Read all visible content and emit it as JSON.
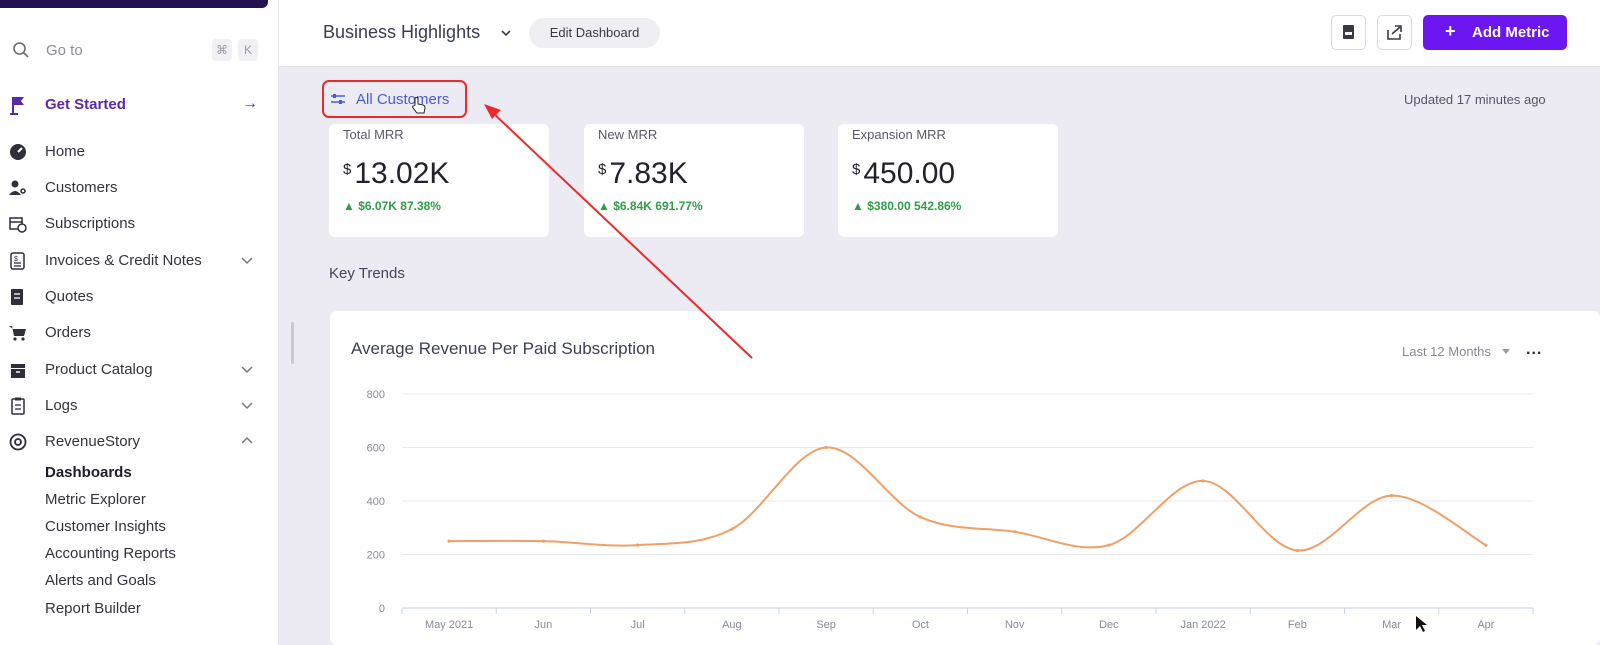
{
  "sidebar": {
    "search_placeholder": "Go to",
    "shortcut_keys": [
      "⌘",
      "K"
    ],
    "get_started": "Get Started",
    "items": [
      {
        "label": "Home"
      },
      {
        "label": "Customers"
      },
      {
        "label": "Subscriptions"
      },
      {
        "label": "Invoices & Credit Notes",
        "expandable": true
      },
      {
        "label": "Quotes"
      },
      {
        "label": "Orders"
      },
      {
        "label": "Product Catalog",
        "expandable": true
      },
      {
        "label": "Logs",
        "expandable": true
      },
      {
        "label": "RevenueStory",
        "expanded": true
      }
    ],
    "revenue_story_subitems": [
      "Dashboards",
      "Metric Explorer",
      "Customer Insights",
      "Accounting Reports",
      "Alerts and Goals",
      "Report Builder"
    ],
    "active_subitem": "Dashboards"
  },
  "header": {
    "dashboard_title": "Business Highlights",
    "edit_button": "Edit Dashboard",
    "add_metric_button": "Add Metric"
  },
  "filter": {
    "label": "All Customers",
    "updated_text": "Updated 17 minutes ago"
  },
  "metrics": [
    {
      "title": "Total MRR",
      "currency": "$",
      "value": "13.02K",
      "delta": "$6.07K",
      "delta_pct": "87.38%"
    },
    {
      "title": "New MRR",
      "currency": "$",
      "value": "7.83K",
      "delta": "$6.84K",
      "delta_pct": "691.77%"
    },
    {
      "title": "Expansion MRR",
      "currency": "$",
      "value": "450.00",
      "delta": "$380.00",
      "delta_pct": "542.86%"
    }
  ],
  "section_title": "Key Trends",
  "chart_panel": {
    "title": "Average Revenue Per Paid Subscription",
    "range": "Last 12 Months",
    "more": "..."
  },
  "colors": {
    "brand_purple": "#6c16f2",
    "line": "#f0a067",
    "positive": "#2f9e44",
    "annotation_red": "#ea2b2b"
  },
  "chart_data": {
    "type": "line",
    "title": "Average Revenue Per Paid Subscription",
    "categories": [
      "May 2021",
      "Jun",
      "Jul",
      "Aug",
      "Sep",
      "Oct",
      "Nov",
      "Dec",
      "Jan 2022",
      "Feb",
      "Mar",
      "Apr"
    ],
    "values": [
      250,
      250,
      235,
      295,
      600,
      340,
      285,
      235,
      475,
      215,
      420,
      235
    ],
    "yticks": [
      0,
      200,
      400,
      600,
      800
    ],
    "ylim": [
      0,
      800
    ],
    "grid": true
  }
}
